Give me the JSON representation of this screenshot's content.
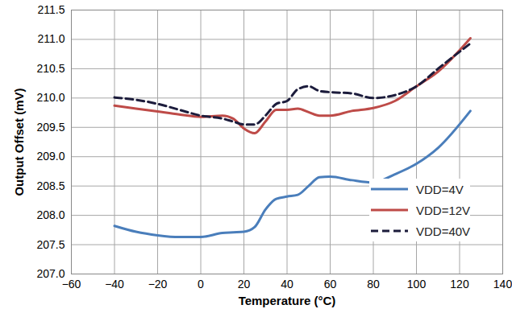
{
  "chart_data": {
    "type": "line",
    "x_label": "Temperature (°C)",
    "y_label": "Output Offset (mV)",
    "x": [
      -40,
      -30,
      -20,
      -10,
      0,
      10,
      15,
      20,
      25,
      30,
      35,
      40,
      45,
      50,
      55,
      60,
      70,
      80,
      90,
      100,
      110,
      125
    ],
    "series": [
      {
        "name": "VDD=4V",
        "color": "#4a7ebb",
        "line_style": "solid",
        "values": [
          207.82,
          207.72,
          207.66,
          207.63,
          207.63,
          207.7,
          207.71,
          207.72,
          207.8,
          208.1,
          208.28,
          208.32,
          208.35,
          208.5,
          208.65,
          208.66,
          208.6,
          208.56,
          208.7,
          208.88,
          209.15,
          209.78
        ]
      },
      {
        "name": "VDD=12V",
        "color": "#be4b48",
        "line_style": "solid",
        "values": [
          209.87,
          209.82,
          209.77,
          209.72,
          209.68,
          209.7,
          209.65,
          209.48,
          209.4,
          209.6,
          209.8,
          209.8,
          209.82,
          209.76,
          209.7,
          209.7,
          209.78,
          209.83,
          209.95,
          210.2,
          210.45,
          211.02
        ]
      },
      {
        "name": "VDD=40V",
        "color": "#1c1c3c",
        "line_style": "dashed",
        "values": [
          210.01,
          209.97,
          209.9,
          209.8,
          209.7,
          209.65,
          209.6,
          209.55,
          209.55,
          209.7,
          209.9,
          209.95,
          210.15,
          210.2,
          210.12,
          210.1,
          210.08,
          210.0,
          210.05,
          210.2,
          210.5,
          210.93
        ]
      }
    ],
    "xlim": [
      -60,
      140
    ],
    "xticks": [
      -60,
      -40,
      -20,
      0,
      20,
      40,
      60,
      80,
      100,
      120,
      140
    ],
    "ylim": [
      207,
      211.5
    ],
    "yticks": [
      207,
      207.5,
      208,
      208.5,
      209,
      209.5,
      210,
      210.5,
      211,
      211.5
    ],
    "grid": true,
    "legend": "bottom-right"
  }
}
